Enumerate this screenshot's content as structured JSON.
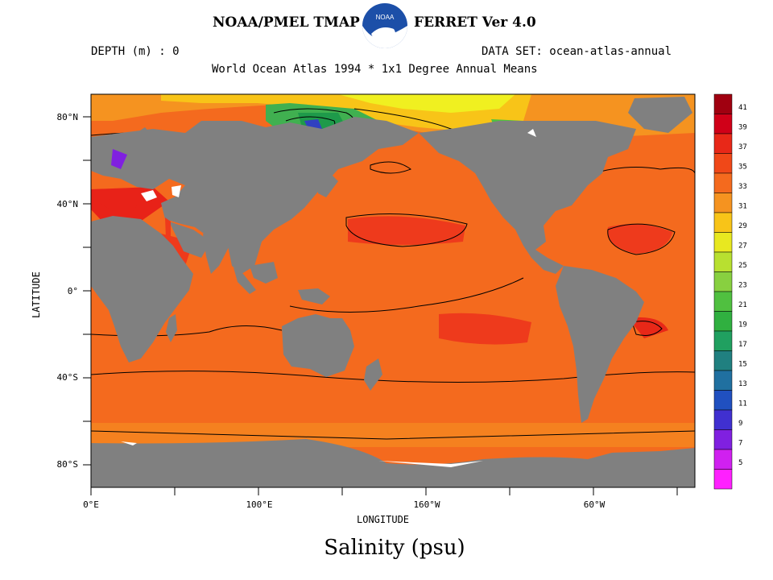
{
  "header": {
    "title_left": "NOAA/PMEL TMAP",
    "title_right": "FERRET Ver 4.0",
    "logo_text": "NOAA",
    "depth": "DEPTH (m) : 0",
    "dataset": "DATA SET: ocean-atlas-annual",
    "subtitle": "World Ocean Atlas 1994 * 1x1 Degree Annual Means"
  },
  "map": {
    "xlabel": "LONGITUDE",
    "ylabel": "LATITUDE",
    "lon_ticks": [
      "0°E",
      "100°E",
      "160°W",
      "60°W"
    ],
    "lat_ticks": [
      "80°N",
      "40°N",
      "0°",
      "40°S",
      "80°S"
    ],
    "colors": {
      "land": "#808080",
      "ocean_base": "#f46a1e",
      "ocean_high": "#ee3a1c",
      "ocean_mid": "#f59320",
      "ocean_low": "#f8c418",
      "arctic_low": "#f0f020",
      "med_sea": "#e82218",
      "ice": "#ffffff"
    }
  },
  "colorbar": {
    "levels": [
      "41",
      "39",
      "37",
      "35",
      "33",
      "31",
      "29",
      "27",
      "25",
      "23",
      "21",
      "19",
      "17",
      "15",
      "13",
      "11",
      "9",
      "7",
      "5"
    ],
    "colors": [
      "#a00010",
      "#d00018",
      "#e82818",
      "#f04818",
      "#f46a1e",
      "#f59320",
      "#f8c418",
      "#e8e820",
      "#b8e030",
      "#88d040",
      "#50c040",
      "#30b040",
      "#20a060",
      "#208080",
      "#2070a0",
      "#2050c0",
      "#4030d0",
      "#8020e0",
      "#d020f0",
      "#ff20ff"
    ]
  },
  "caption": "Salinity (psu)"
}
